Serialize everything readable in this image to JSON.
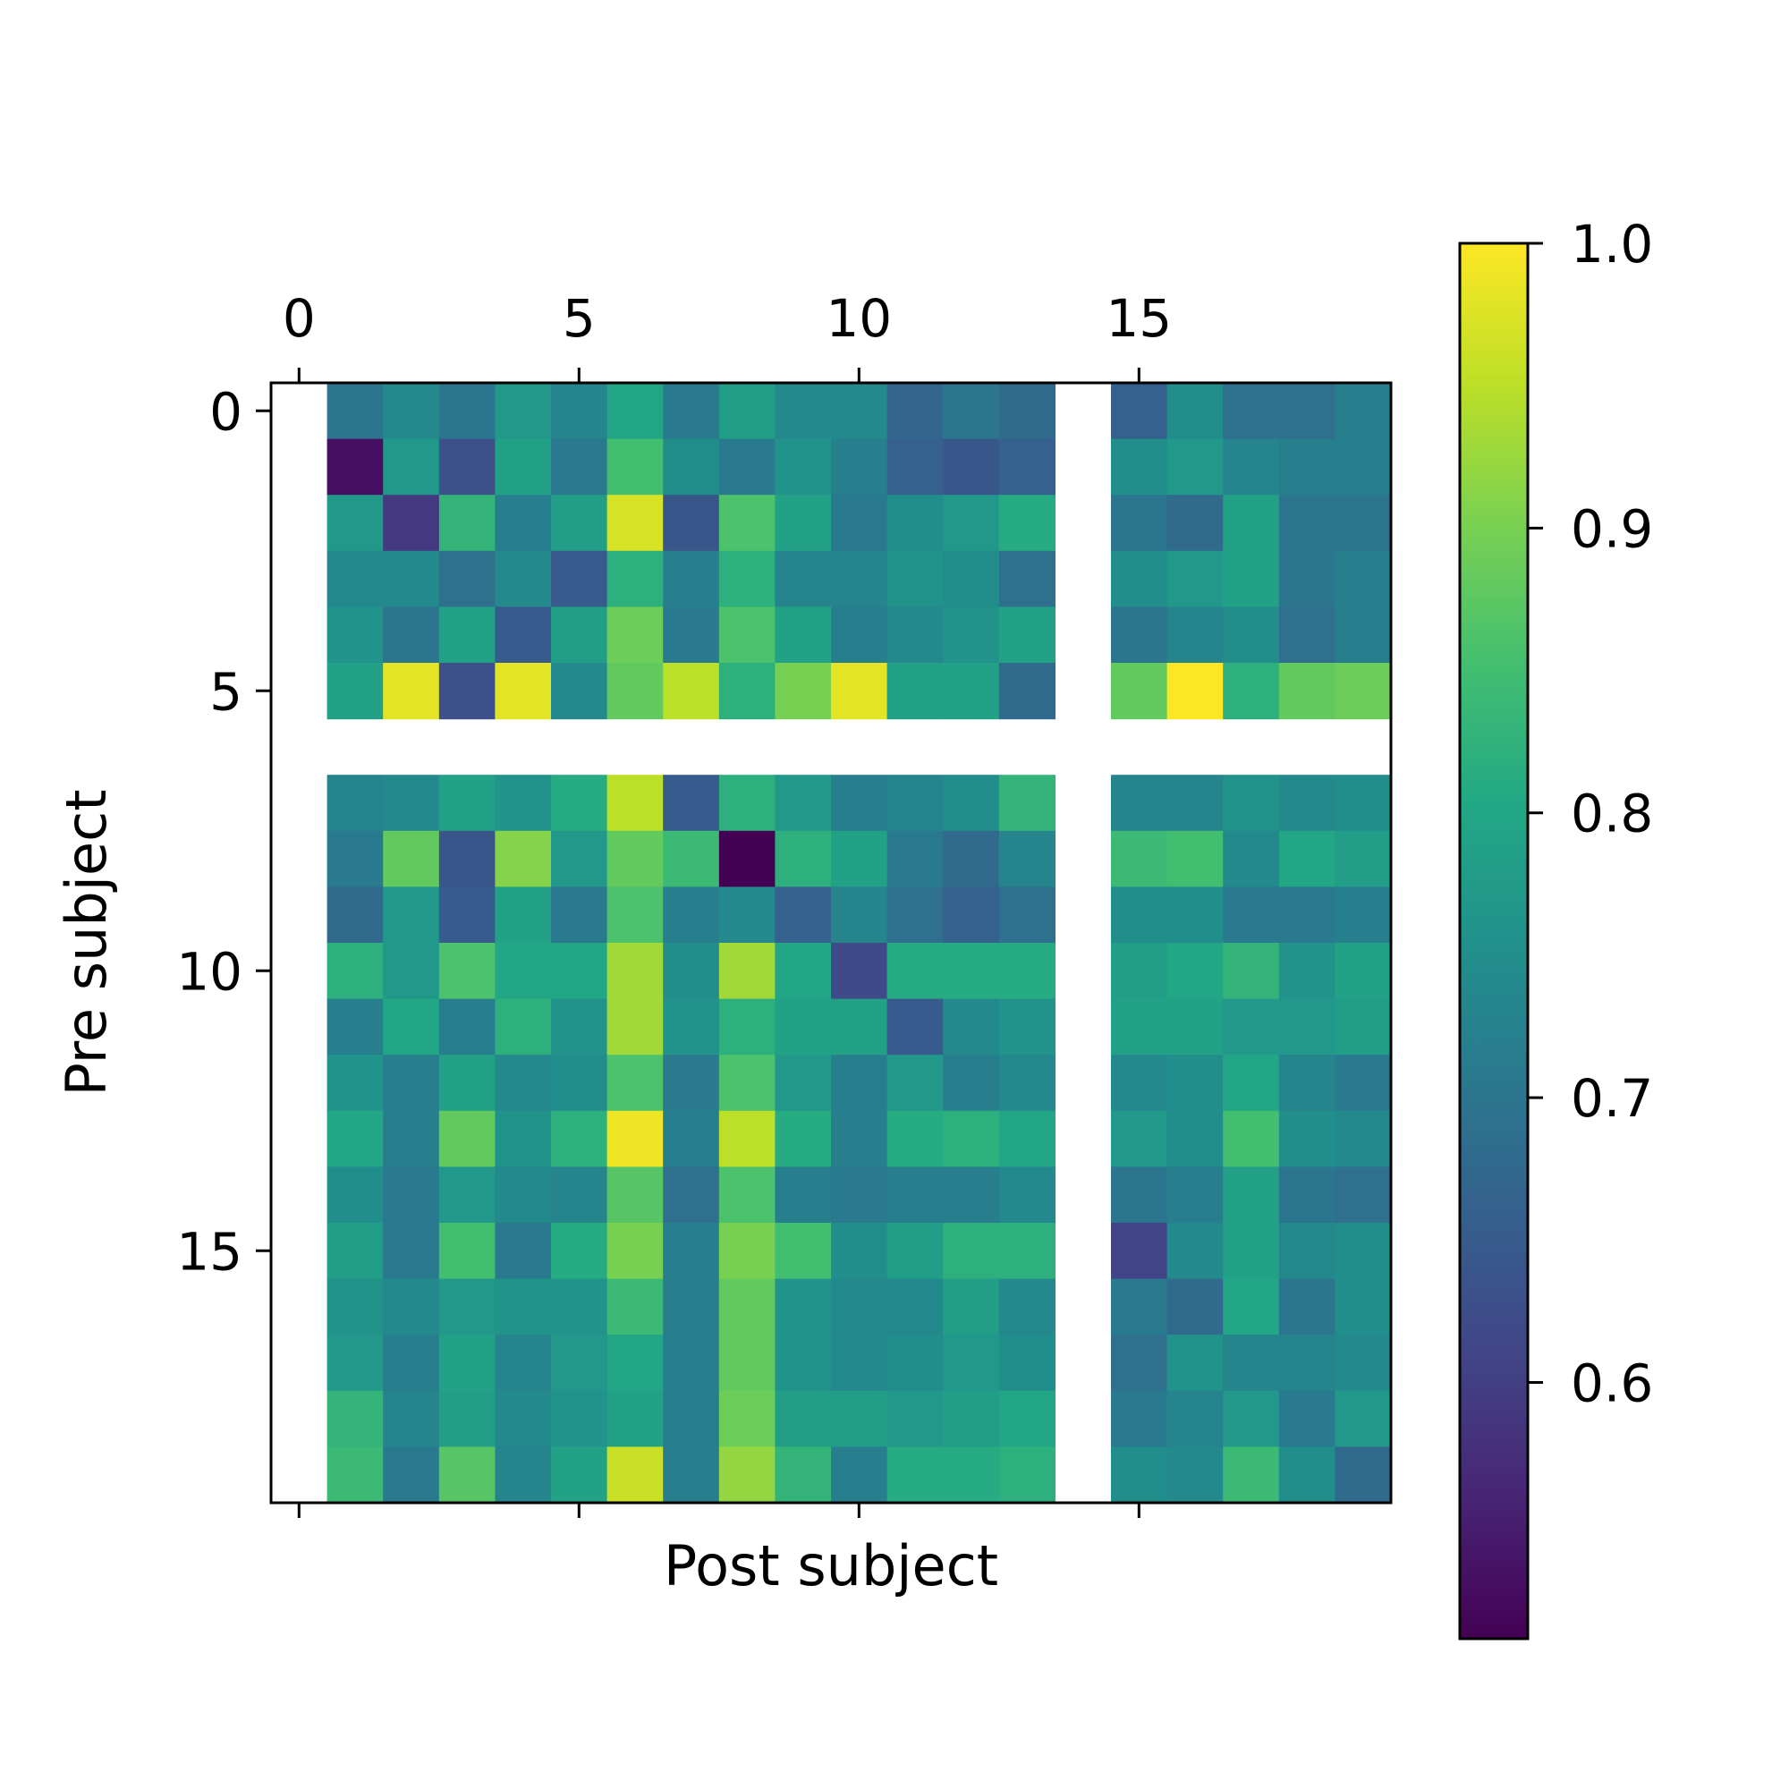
{
  "chart_data": {
    "type": "heatmap",
    "title": "",
    "xlabel": "Post subject",
    "ylabel": "Pre subject",
    "n_rows": 20,
    "n_cols": 20,
    "x_ticks": [
      0,
      5,
      10,
      15
    ],
    "y_ticks": [
      0,
      5,
      10,
      15
    ],
    "x_tick_labels": [
      "0",
      "5",
      "10",
      "15"
    ],
    "y_tick_labels": [
      "0",
      "5",
      "10",
      "15"
    ],
    "colormap": "viridis",
    "colorbar": {
      "vmin": 0.51,
      "vmax": 1.0,
      "ticks": [
        0.6,
        0.7,
        0.8,
        0.9,
        1.0
      ],
      "tick_labels": [
        "0.6",
        "0.7",
        "0.8",
        "0.9",
        "1.0"
      ],
      "placement": "right"
    },
    "missing_rows": [
      6
    ],
    "missing_cols": [
      0,
      14
    ],
    "values": [
      [
        null,
        0.7,
        0.74,
        0.7,
        0.77,
        0.73,
        0.8,
        0.71,
        0.78,
        0.74,
        0.74,
        0.67,
        0.7,
        0.68,
        null,
        0.66,
        0.75,
        0.69,
        0.69,
        0.72
      ],
      [
        null,
        0.53,
        0.77,
        0.63,
        0.79,
        0.71,
        0.85,
        0.75,
        0.71,
        0.76,
        0.72,
        0.66,
        0.64,
        0.66,
        null,
        0.75,
        0.77,
        0.73,
        0.72,
        0.72
      ],
      [
        null,
        0.77,
        0.59,
        0.83,
        0.72,
        0.78,
        0.97,
        0.64,
        0.86,
        0.79,
        0.71,
        0.75,
        0.77,
        0.81,
        null,
        0.7,
        0.68,
        0.79,
        0.7,
        0.7
      ],
      [
        null,
        0.74,
        0.74,
        0.69,
        0.74,
        0.65,
        0.82,
        0.72,
        0.82,
        0.73,
        0.73,
        0.76,
        0.75,
        0.69,
        null,
        0.75,
        0.77,
        0.79,
        0.7,
        0.72
      ],
      [
        null,
        0.76,
        0.7,
        0.79,
        0.65,
        0.78,
        0.89,
        0.71,
        0.86,
        0.79,
        0.72,
        0.74,
        0.76,
        0.79,
        null,
        0.7,
        0.73,
        0.75,
        0.69,
        0.72
      ],
      [
        null,
        0.79,
        0.98,
        0.63,
        0.98,
        0.74,
        0.88,
        0.95,
        0.82,
        0.9,
        0.98,
        0.79,
        0.79,
        0.68,
        null,
        0.88,
        1.0,
        0.82,
        0.88,
        0.89
      ],
      [
        null,
        null,
        null,
        null,
        null,
        null,
        null,
        null,
        null,
        null,
        null,
        null,
        null,
        null,
        null,
        null,
        null,
        null,
        null,
        null
      ],
      [
        null,
        0.73,
        0.74,
        0.79,
        0.76,
        0.81,
        0.95,
        0.65,
        0.82,
        0.77,
        0.72,
        0.73,
        0.75,
        0.83,
        null,
        0.73,
        0.73,
        0.76,
        0.74,
        0.75
      ],
      [
        null,
        0.71,
        0.88,
        0.64,
        0.91,
        0.77,
        0.88,
        0.84,
        0.51,
        0.82,
        0.79,
        0.71,
        0.68,
        0.73,
        null,
        0.84,
        0.85,
        0.74,
        0.8,
        0.78
      ],
      [
        null,
        0.68,
        0.77,
        0.65,
        0.79,
        0.71,
        0.86,
        0.72,
        0.74,
        0.66,
        0.73,
        0.69,
        0.66,
        0.69,
        null,
        0.75,
        0.75,
        0.71,
        0.71,
        0.72
      ],
      [
        null,
        0.82,
        0.77,
        0.86,
        0.8,
        0.8,
        0.93,
        0.75,
        0.93,
        0.8,
        0.62,
        0.81,
        0.81,
        0.81,
        null,
        0.78,
        0.8,
        0.83,
        0.76,
        0.79
      ],
      [
        null,
        0.72,
        0.8,
        0.72,
        0.82,
        0.76,
        0.93,
        0.76,
        0.82,
        0.79,
        0.79,
        0.65,
        0.74,
        0.76,
        null,
        0.79,
        0.79,
        0.77,
        0.77,
        0.78
      ],
      [
        null,
        0.76,
        0.72,
        0.79,
        0.74,
        0.75,
        0.86,
        0.71,
        0.86,
        0.77,
        0.72,
        0.77,
        0.72,
        0.74,
        null,
        0.74,
        0.75,
        0.8,
        0.73,
        0.71
      ],
      [
        null,
        0.8,
        0.72,
        0.88,
        0.76,
        0.82,
        0.99,
        0.72,
        0.95,
        0.81,
        0.72,
        0.81,
        0.82,
        0.8,
        null,
        0.77,
        0.75,
        0.85,
        0.75,
        0.74
      ],
      [
        null,
        0.75,
        0.71,
        0.77,
        0.74,
        0.73,
        0.87,
        0.69,
        0.86,
        0.72,
        0.71,
        0.72,
        0.72,
        0.74,
        null,
        0.7,
        0.72,
        0.79,
        0.7,
        0.69
      ],
      [
        null,
        0.78,
        0.71,
        0.85,
        0.71,
        0.81,
        0.9,
        0.72,
        0.9,
        0.85,
        0.75,
        0.78,
        0.82,
        0.82,
        null,
        0.61,
        0.74,
        0.79,
        0.74,
        0.75
      ],
      [
        null,
        0.76,
        0.74,
        0.77,
        0.76,
        0.76,
        0.84,
        0.72,
        0.88,
        0.76,
        0.74,
        0.74,
        0.78,
        0.74,
        null,
        0.71,
        0.68,
        0.8,
        0.7,
        0.75
      ],
      [
        null,
        0.77,
        0.72,
        0.79,
        0.73,
        0.77,
        0.8,
        0.72,
        0.88,
        0.76,
        0.74,
        0.75,
        0.77,
        0.75,
        null,
        0.69,
        0.76,
        0.73,
        0.73,
        0.74
      ],
      [
        null,
        0.83,
        0.73,
        0.78,
        0.74,
        0.76,
        0.79,
        0.72,
        0.89,
        0.78,
        0.78,
        0.77,
        0.78,
        0.8,
        null,
        0.71,
        0.73,
        0.77,
        0.71,
        0.77
      ],
      [
        null,
        0.84,
        0.71,
        0.87,
        0.73,
        0.79,
        0.96,
        0.72,
        0.92,
        0.83,
        0.72,
        0.81,
        0.81,
        0.82,
        null,
        0.75,
        0.74,
        0.84,
        0.75,
        0.68
      ]
    ]
  }
}
